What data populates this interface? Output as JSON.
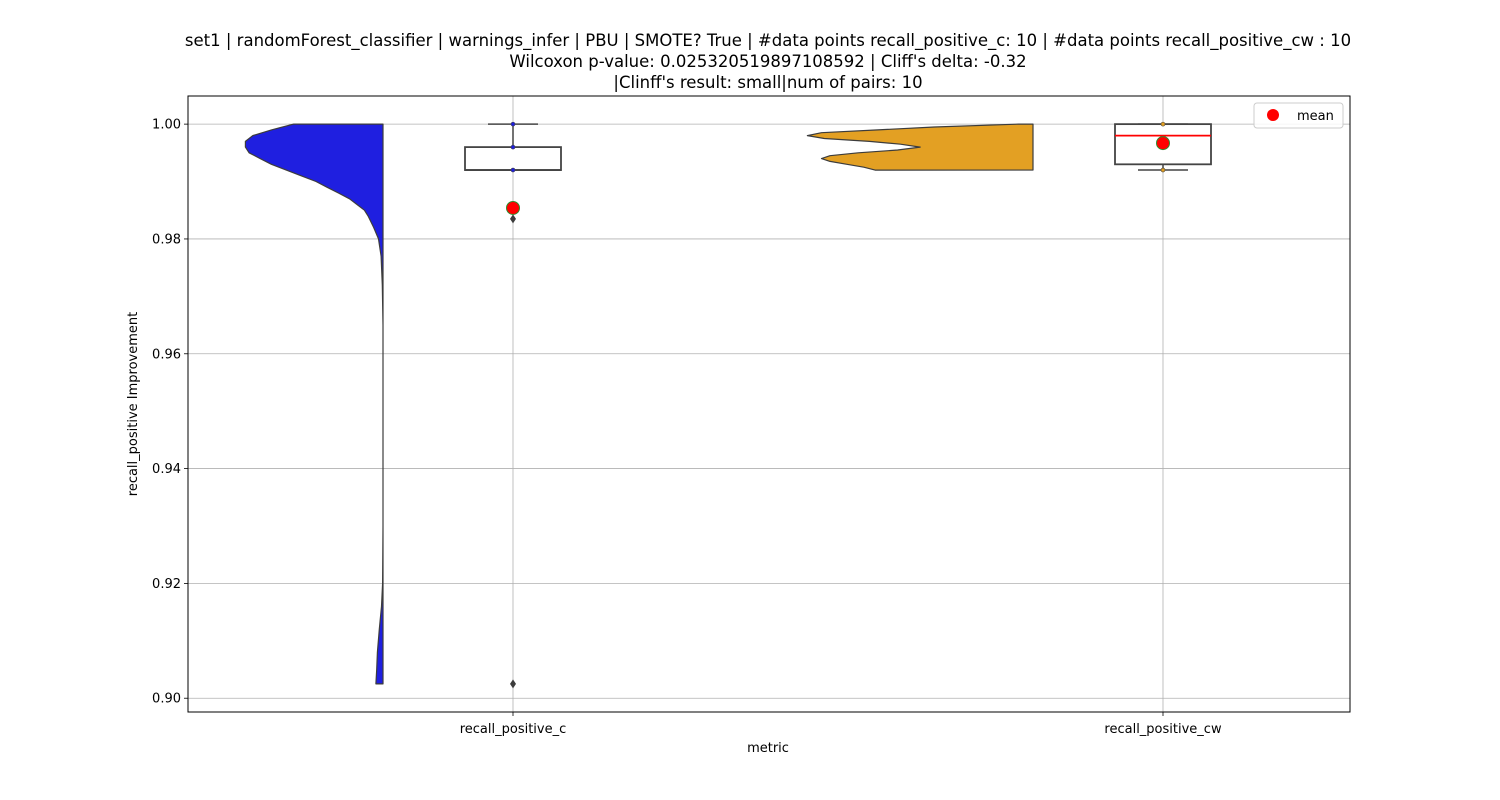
{
  "chart_data": {
    "type": "violin",
    "title_lines": [
      "set1 | randomForest_classifier | warnings_infer | PBU | SMOTE? True | #data points recall_positive_c: 10 | #data points recall_positive_cw : 10",
      "Wilcoxon p-value: 0.025320519897108592 | Cliff's delta: -0.32",
      "|Clinff's result: small|num of pairs: 10"
    ],
    "xlabel": "metric",
    "ylabel": "recall_positive Improvement",
    "categories": [
      "recall_positive_c",
      "recall_positive_cw"
    ],
    "ylim": [
      0.8976,
      1.0049
    ],
    "yticks": [
      0.9,
      0.92,
      0.94,
      0.96,
      0.98,
      1.0
    ],
    "ytick_labels": [
      "0.90",
      "0.92",
      "0.94",
      "0.96",
      "0.98",
      "1.00"
    ],
    "grid": true,
    "legend": {
      "placement": "top-right",
      "entries": [
        {
          "label": "mean",
          "color": "#ff0000"
        }
      ]
    },
    "series": [
      {
        "name": "recall_positive_c",
        "violin_color": "#1f1fe0",
        "violin_side": "left",
        "density": [
          [
            1.0,
            0.24
          ],
          [
            0.999,
            0.3
          ],
          [
            0.998,
            0.35
          ],
          [
            0.997,
            0.37
          ],
          [
            0.996,
            0.37
          ],
          [
            0.995,
            0.36
          ],
          [
            0.994,
            0.33
          ],
          [
            0.993,
            0.3
          ],
          [
            0.992,
            0.26
          ],
          [
            0.991,
            0.22
          ],
          [
            0.99,
            0.18
          ],
          [
            0.989,
            0.15
          ],
          [
            0.988,
            0.12
          ],
          [
            0.987,
            0.09
          ],
          [
            0.986,
            0.07
          ],
          [
            0.985,
            0.05
          ],
          [
            0.984,
            0.04
          ],
          [
            0.982,
            0.025
          ],
          [
            0.98,
            0.012
          ],
          [
            0.977,
            0.005
          ],
          [
            0.972,
            0.002
          ],
          [
            0.965,
            0.0
          ],
          [
            0.95,
            0.0
          ],
          [
            0.93,
            0.0
          ],
          [
            0.92,
            0.001
          ],
          [
            0.916,
            0.004
          ],
          [
            0.912,
            0.01
          ],
          [
            0.908,
            0.015
          ],
          [
            0.905,
            0.017
          ],
          [
            0.9025,
            0.019
          ]
        ],
        "box": {
          "whisker_low": 0.992,
          "q1": 0.992,
          "median": 0.992,
          "q3": 0.996,
          "whisker_high": 1.0
        },
        "outliers": [
          0.9835,
          0.9025
        ],
        "points": [
          1.0,
          0.996,
          0.992
        ],
        "mean": 0.9854,
        "median_color": "#444444"
      },
      {
        "name": "recall_positive_cw",
        "violin_color": "#e3a023",
        "violin_side": "right",
        "density": [
          [
            1.0,
            0.05
          ],
          [
            0.9995,
            0.35
          ],
          [
            0.999,
            0.55
          ],
          [
            0.9985,
            0.75
          ],
          [
            0.998,
            0.8
          ],
          [
            0.9975,
            0.74
          ],
          [
            0.997,
            0.58
          ],
          [
            0.9965,
            0.47
          ],
          [
            0.996,
            0.4
          ],
          [
            0.9955,
            0.48
          ],
          [
            0.995,
            0.62
          ],
          [
            0.9945,
            0.72
          ],
          [
            0.994,
            0.75
          ],
          [
            0.9935,
            0.72
          ],
          [
            0.993,
            0.66
          ],
          [
            0.9925,
            0.6
          ],
          [
            0.992,
            0.56
          ]
        ],
        "box": {
          "whisker_low": 0.992,
          "q1": 0.993,
          "median": 0.998,
          "q3": 1.0,
          "whisker_high": 1.0
        },
        "outliers": [],
        "points": [
          1.0,
          0.992
        ],
        "mean": 0.9967,
        "median_color": "#ff0000"
      }
    ]
  }
}
